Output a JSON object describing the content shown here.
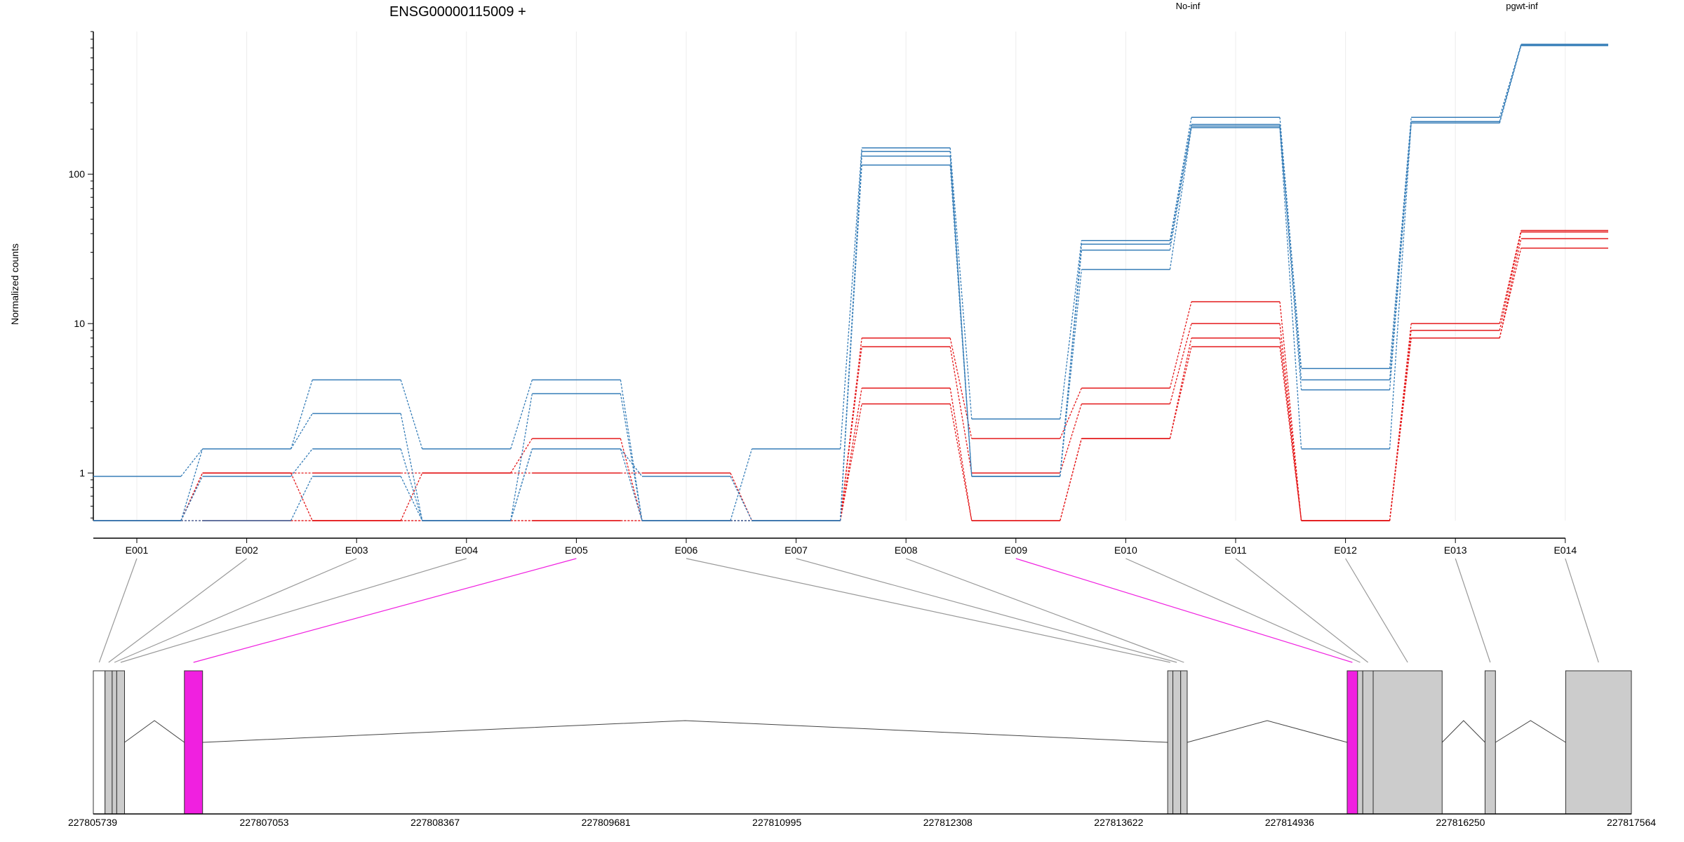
{
  "chart_data": {
    "type": "line",
    "title": "ENSG00000115009 +",
    "ylabel": "Normalized counts",
    "yscale": "log",
    "ylim": [
      0.48,
      900
    ],
    "yticks": [
      {
        "value": 1,
        "label": "1"
      },
      {
        "value": 10,
        "label": "10"
      },
      {
        "value": 100,
        "label": "100"
      }
    ],
    "categories": [
      "E001",
      "E002",
      "E003",
      "E004",
      "E005",
      "E006",
      "E007",
      "E008",
      "E009",
      "E010",
      "E011",
      "E012",
      "E013",
      "E014"
    ],
    "legend": [
      {
        "name": "No-inf",
        "color": "#e41a1c"
      },
      {
        "name": "pgwt-inf",
        "color": "#377eb8"
      }
    ],
    "series": [
      {
        "group": "No-inf",
        "values": [
          0.48,
          1.0,
          0.48,
          1.0,
          1.0,
          1.0,
          0.48,
          8.0,
          1.7,
          3.7,
          14.0,
          0.48,
          10.0,
          42.0
        ]
      },
      {
        "group": "No-inf",
        "values": [
          0.48,
          1.0,
          1.0,
          1.0,
          1.7,
          0.48,
          0.48,
          7.0,
          1.0,
          2.9,
          10.0,
          0.48,
          9.0,
          41.0
        ]
      },
      {
        "group": "No-inf",
        "values": [
          0.48,
          0.48,
          0.48,
          0.48,
          0.48,
          0.48,
          0.48,
          3.7,
          0.48,
          1.7,
          8.0,
          0.48,
          8.0,
          37.0
        ]
      },
      {
        "group": "No-inf",
        "values": [
          0.48,
          0.48,
          0.48,
          0.48,
          0.48,
          0.48,
          0.48,
          2.9,
          0.48,
          1.7,
          7.0,
          0.48,
          8.0,
          32.0
        ]
      },
      {
        "group": "pgwt-inf",
        "values": [
          0.95,
          1.45,
          4.2,
          1.45,
          4.2,
          0.48,
          1.45,
          150,
          2.3,
          36,
          240,
          5.0,
          240,
          740
        ]
      },
      {
        "group": "pgwt-inf",
        "values": [
          0.48,
          1.45,
          2.5,
          0.48,
          3.4,
          0.48,
          0.48,
          142,
          0.95,
          34,
          215,
          4.2,
          225,
          735
        ]
      },
      {
        "group": "pgwt-inf",
        "values": [
          0.48,
          0.95,
          1.45,
          0.48,
          1.45,
          0.48,
          0.48,
          132,
          0.95,
          31,
          210,
          3.6,
          220,
          730
        ]
      },
      {
        "group": "pgwt-inf",
        "values": [
          0.48,
          0.48,
          0.95,
          0.48,
          1.45,
          0.95,
          0.48,
          115,
          0.95,
          23,
          205,
          1.45,
          220,
          725
        ]
      }
    ],
    "gene_model": {
      "coordinates": [
        "227805739",
        "227807053",
        "227808367",
        "227809681",
        "227810995",
        "227812308",
        "227813622",
        "227814936",
        "227816250",
        "227817564"
      ],
      "coord_range": [
        227805739,
        227817564
      ],
      "highlight_color": "#f020e0",
      "exon_color": "#cccccc",
      "exons": [
        {
          "id": "E001",
          "start": 227805739,
          "end": 227805829,
          "fill": "#ffffff",
          "highlight": false
        },
        {
          "id": "E002",
          "start": 227805829,
          "end": 227805884,
          "fill": "#cccccc",
          "highlight": false
        },
        {
          "id": "E003",
          "start": 227805884,
          "end": 227805919,
          "fill": "#cccccc",
          "highlight": false
        },
        {
          "id": "E004",
          "start": 227805919,
          "end": 227805979,
          "fill": "#cccccc",
          "highlight": false
        },
        {
          "id": "E005",
          "start": 227806439,
          "end": 227806579,
          "fill": "#f020e0",
          "highlight": true
        },
        {
          "id": "E006",
          "start": 227813999,
          "end": 227814039,
          "fill": "#cccccc",
          "highlight": false
        },
        {
          "id": "E007",
          "start": 227814039,
          "end": 227814099,
          "fill": "#cccccc",
          "highlight": false
        },
        {
          "id": "E008",
          "start": 227814099,
          "end": 227814149,
          "fill": "#cccccc",
          "highlight": false
        },
        {
          "id": "E009",
          "start": 227815379,
          "end": 227815459,
          "fill": "#f020e0",
          "highlight": true
        },
        {
          "id": "E010",
          "start": 227815459,
          "end": 227815499,
          "fill": "#cccccc",
          "highlight": false
        },
        {
          "id": "E011",
          "start": 227815499,
          "end": 227815579,
          "fill": "#cccccc",
          "highlight": false
        },
        {
          "id": "E012",
          "start": 227815579,
          "end": 227816109,
          "fill": "#cccccc",
          "highlight": false
        },
        {
          "id": "E013",
          "start": 227816439,
          "end": 227816519,
          "fill": "#cccccc",
          "highlight": false
        },
        {
          "id": "E014",
          "start": 227817059,
          "end": 227817564,
          "fill": "#cccccc",
          "highlight": false
        }
      ],
      "introns": [
        {
          "from": 227805979,
          "to": 227806439
        },
        {
          "from": 227806579,
          "to": 227813999
        },
        {
          "from": 227814149,
          "to": 227815379
        },
        {
          "from": 227816109,
          "to": 227816439
        },
        {
          "from": 227816519,
          "to": 227817059
        }
      ]
    }
  }
}
